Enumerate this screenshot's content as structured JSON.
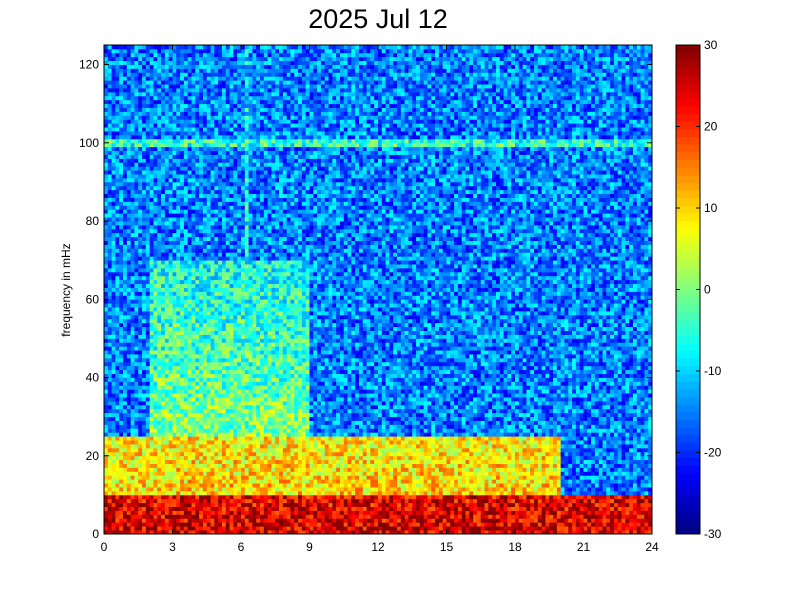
{
  "chart_data": {
    "type": "heatmap",
    "title": "2025 Jul 12",
    "xlabel": "",
    "ylabel": "frequency in mHz",
    "xlim": [
      0,
      24
    ],
    "ylim": [
      0,
      125
    ],
    "x_ticks": [
      "0",
      "3",
      "6",
      "9",
      "12",
      "15",
      "18",
      "21",
      "24"
    ],
    "y_ticks": [
      "0",
      "20",
      "40",
      "60",
      "80",
      "100",
      "120"
    ],
    "colorbar": {
      "range": [
        -30,
        30
      ],
      "ticks": [
        "30",
        "20",
        "10",
        "0",
        "-10",
        "-20",
        "-30"
      ],
      "colormap": "jet"
    },
    "features": [
      {
        "description": "strong low-frequency band",
        "freq_range_mHz": [
          0,
          10
        ],
        "level_dB": 25,
        "time_range_h": [
          0,
          24
        ]
      },
      {
        "description": "elevated power",
        "freq_range_mHz": [
          10,
          25
        ],
        "level_dB": 10,
        "time_range_h": [
          0,
          20
        ]
      },
      {
        "description": "broad moderate power",
        "freq_range_mHz": [
          25,
          70
        ],
        "level_dB": 0,
        "time_range_h": [
          2,
          9
        ]
      },
      {
        "description": "horizontal line",
        "freq_mHz": 100,
        "level_dB": -5,
        "time_range_h": [
          0,
          24
        ]
      },
      {
        "description": "vertical line",
        "time_h": 6.2,
        "freq_range_mHz": [
          0,
          125
        ],
        "level_dB": 0
      }
    ],
    "background_level_dB": -15
  }
}
